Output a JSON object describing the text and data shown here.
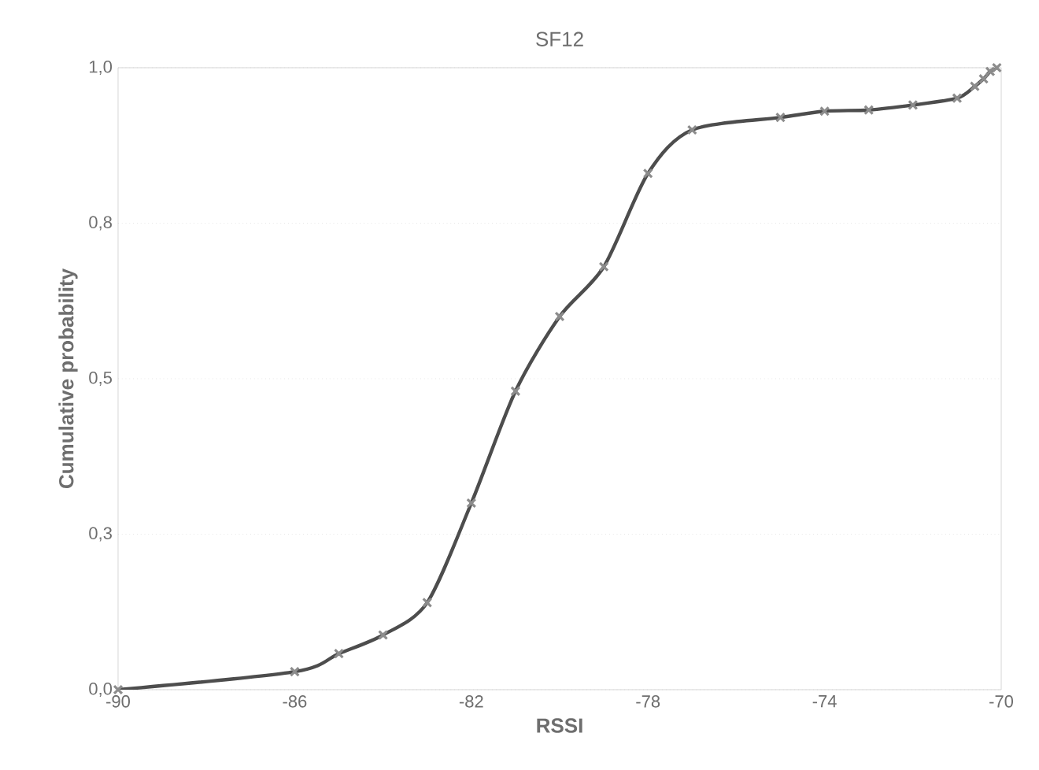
{
  "chart_data": {
    "type": "line",
    "title": "SF12",
    "xlabel": "RSSI",
    "ylabel": "Cumulative probability",
    "x": [
      -90,
      -86,
      -85,
      -84,
      -83,
      -82,
      -81,
      -80,
      -79,
      -78,
      -77,
      -75,
      -74,
      -73,
      -72,
      -71,
      -70.6,
      -70.4,
      -70.25,
      -70.1
    ],
    "series": [
      {
        "color": "#4d4d4d",
        "values": [
          0,
          0.029,
          0.058,
          0.088,
          0.14,
          0.3,
          0.48,
          0.6,
          0.68,
          0.83,
          0.9,
          0.92,
          0.93,
          0.932,
          0.94,
          0.951,
          0.97,
          0.982,
          0.994,
          1.0
        ]
      }
    ],
    "xlim": [
      -90,
      -70
    ],
    "xticks": [
      -90,
      -86,
      -82,
      -78,
      -74,
      -70
    ],
    "ylim": [
      0,
      1
    ],
    "yticks": [
      {
        "value": 0,
        "label": "0,0"
      },
      {
        "value": 0.25,
        "label": "0,3"
      },
      {
        "value": 0.5,
        "label": "0,5"
      },
      {
        "value": 0.75,
        "label": "0,8"
      },
      {
        "value": 1,
        "label": "1,0"
      }
    ],
    "grid": "y",
    "marker": "cross",
    "line_style": "solid"
  }
}
